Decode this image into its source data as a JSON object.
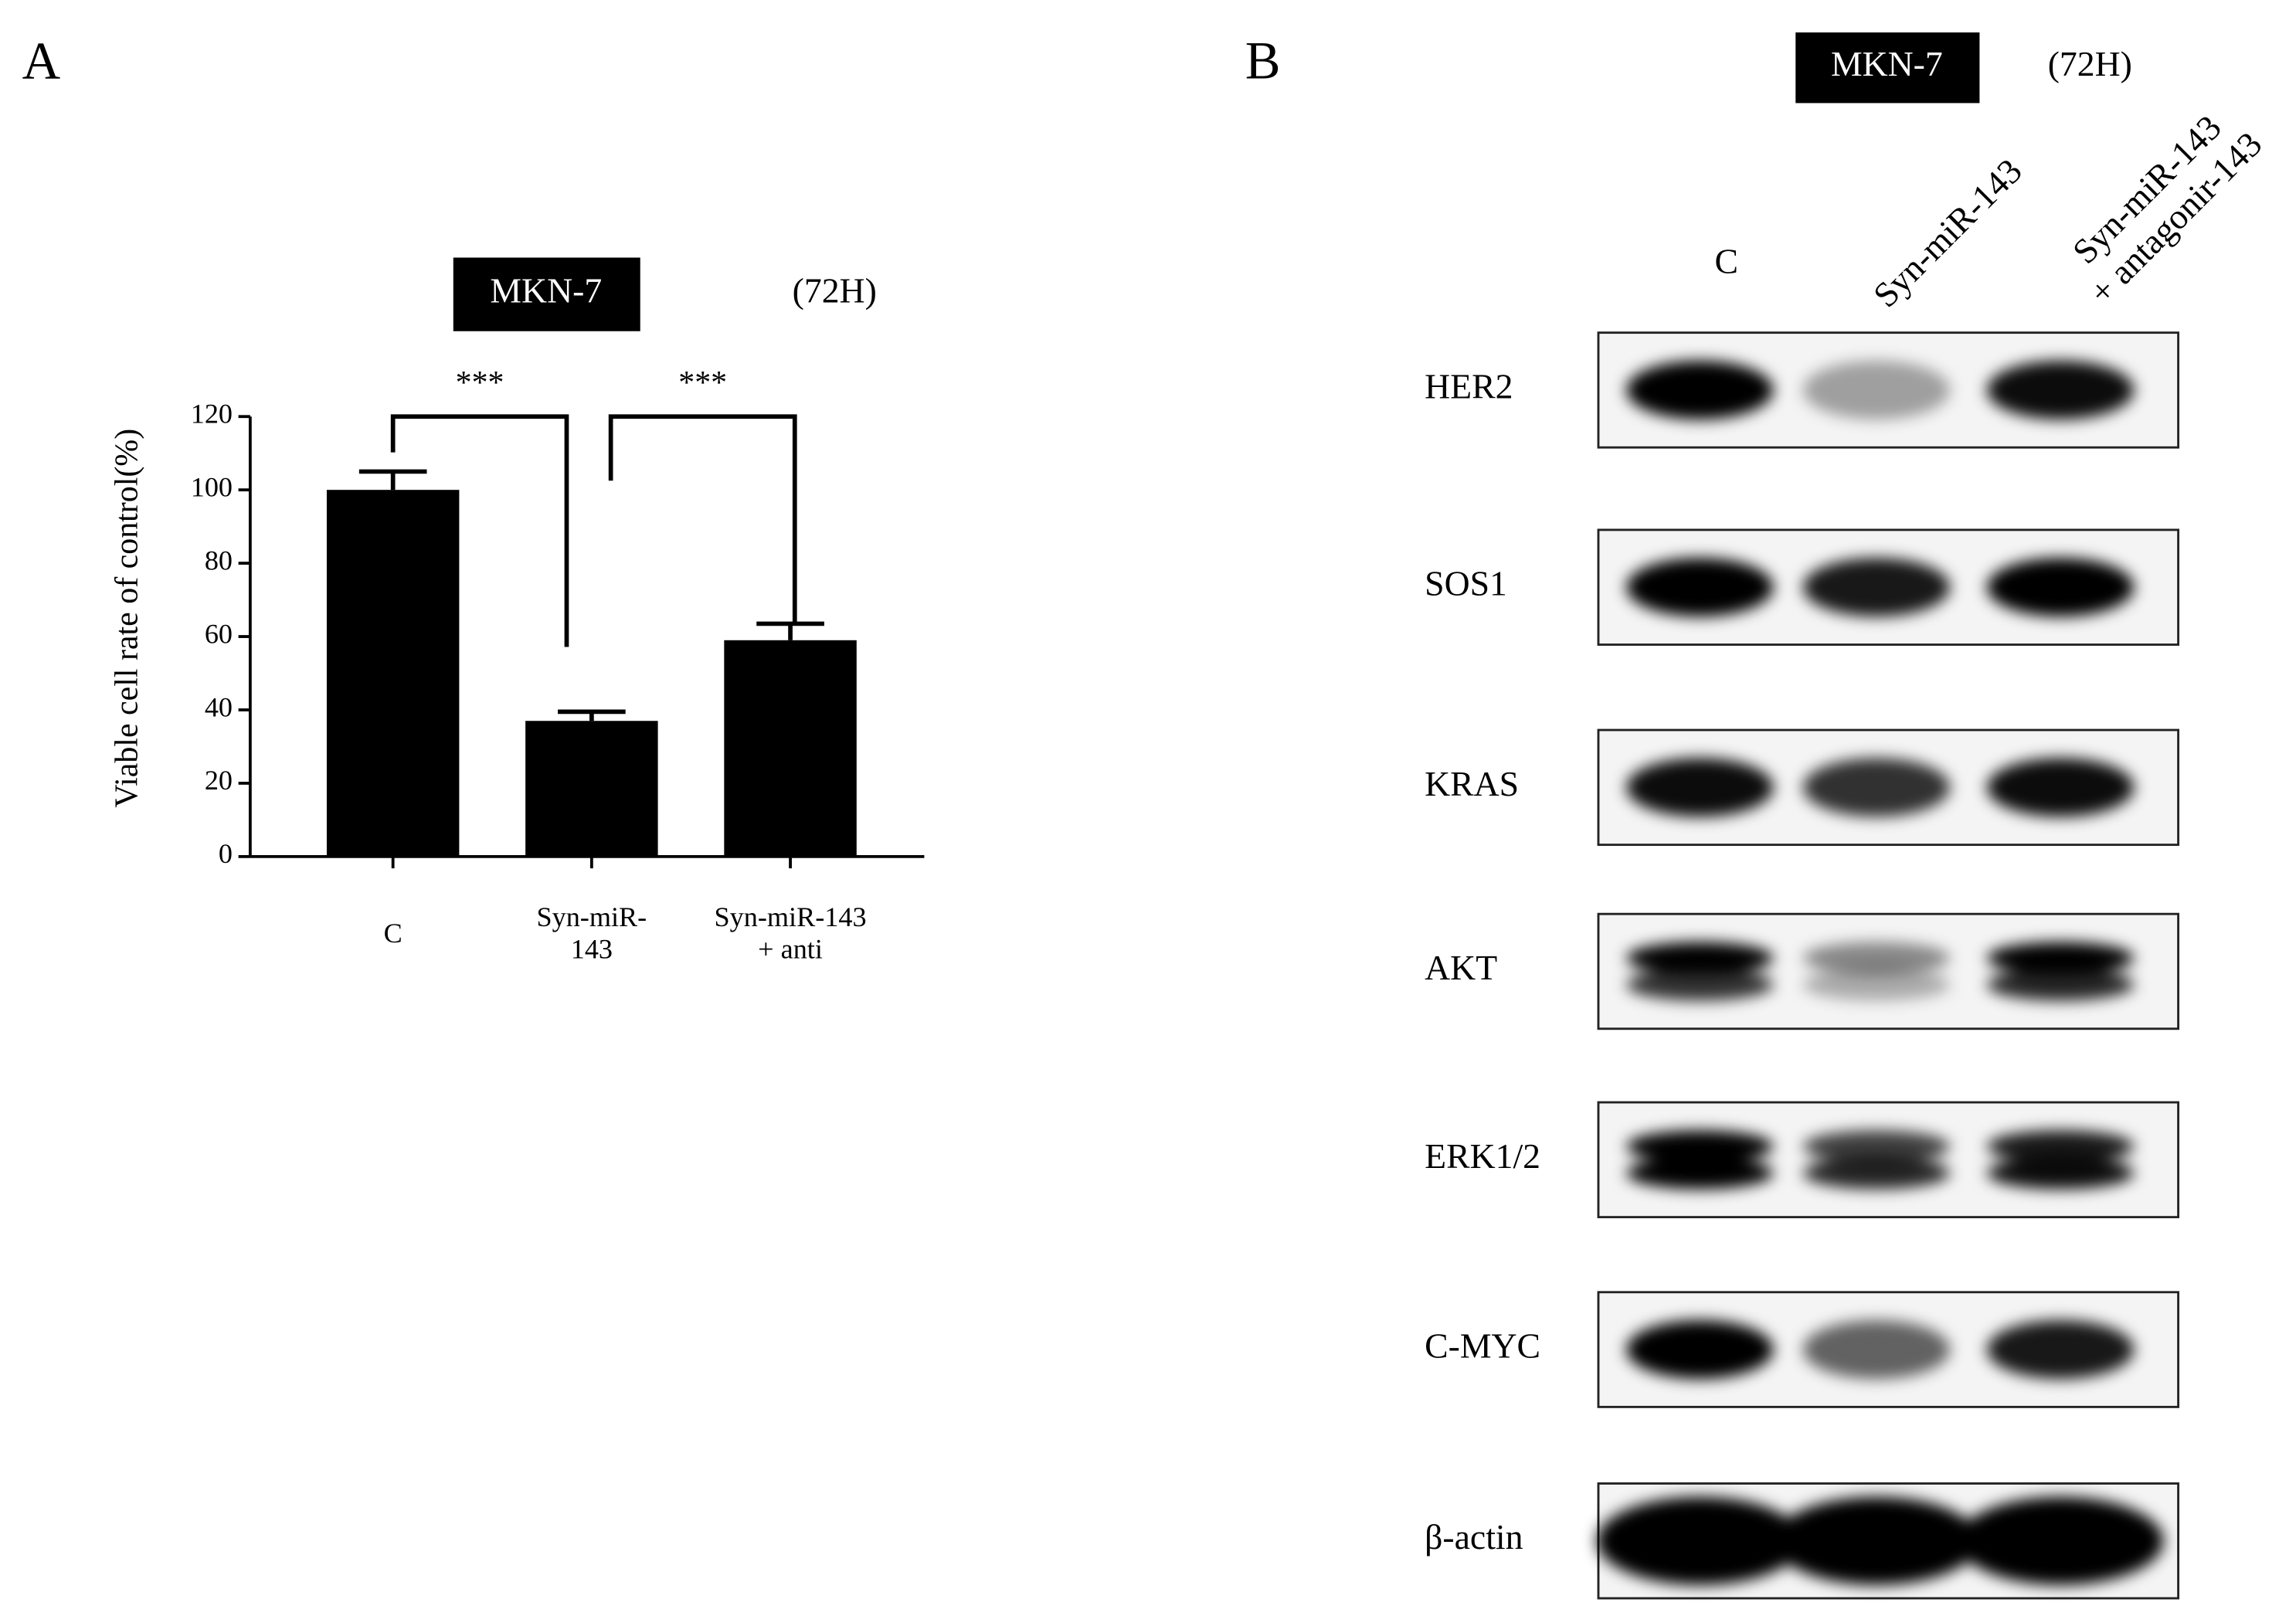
{
  "panels": [
    "A",
    "B"
  ],
  "chart_data": {
    "type": "bar",
    "title": "MKN-7",
    "subtitle": "(72H)",
    "y_label": "Viable cell rate of control(%)",
    "categories": [
      "C",
      "Syn-miR-\n143",
      "Syn-miR-143\n+ anti"
    ],
    "values": [
      100,
      37,
      59
    ],
    "errors": [
      5,
      2.5,
      4.5
    ],
    "color": "#000000",
    "ylim": [
      0,
      120
    ],
    "yticks": [
      0,
      20,
      40,
      60,
      80,
      100,
      120
    ],
    "annotations": [
      "***",
      "***"
    ]
  },
  "blot": {
    "title": "MKN-7",
    "subtitle": "(72H)",
    "lanes": [
      "C",
      "Syn-miR-143",
      "Syn-miR-143\n+ antagonir-143"
    ],
    "proteins": [
      "HER2",
      "SOS1",
      "KRAS",
      "AKT",
      "ERK1/2",
      "C-MYC",
      "β-actin"
    ]
  }
}
